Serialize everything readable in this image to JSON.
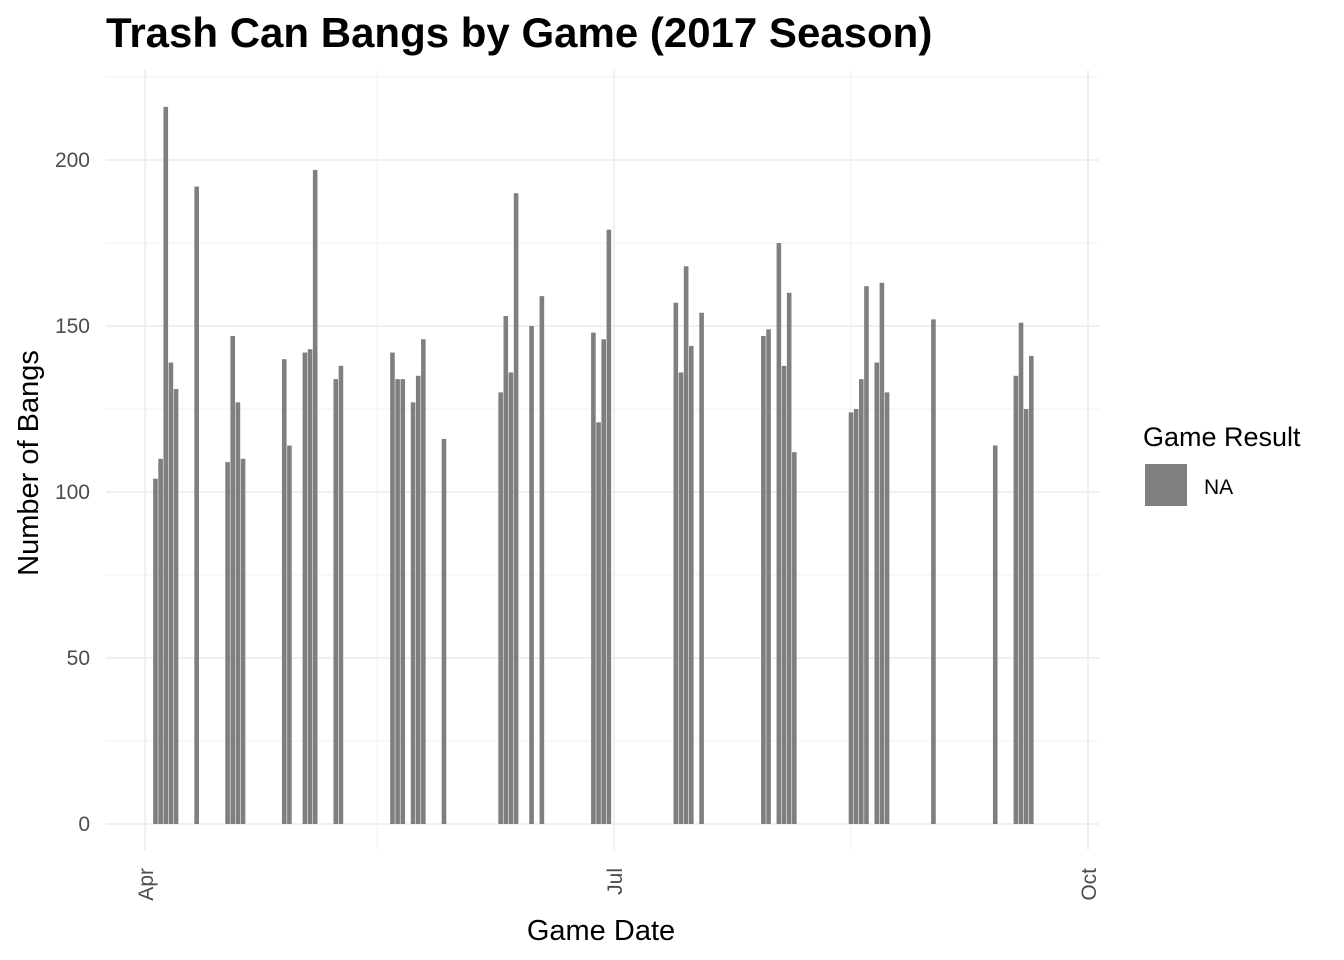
{
  "chart_data": {
    "type": "bar",
    "title": "Trash Can Bangs by Game (2017 Season)",
    "xlabel": "Game Date",
    "ylabel": "Number of Bangs",
    "x_tick_labels": [
      "Apr",
      "Jul",
      "Oct"
    ],
    "y_tick_labels": [
      "0",
      "50",
      "100",
      "150",
      "200"
    ],
    "ylim": [
      0,
      225
    ],
    "xlim": [
      "2017-03-31",
      "2017-10-01"
    ],
    "grid": true,
    "legend": {
      "title": "Game Result",
      "position": "right",
      "items": [
        {
          "label": "NA",
          "color": "#7f7f7f"
        }
      ]
    },
    "bar_color": "#7f7f7f",
    "series": [
      {
        "name": "NA",
        "x": [
          "2017-04-03",
          "2017-04-04",
          "2017-04-05",
          "2017-04-06",
          "2017-04-07",
          "2017-04-11",
          "2017-04-17",
          "2017-04-18",
          "2017-04-19",
          "2017-04-20",
          "2017-04-28",
          "2017-04-29",
          "2017-05-02",
          "2017-05-03",
          "2017-05-04",
          "2017-05-08",
          "2017-05-09",
          "2017-05-19",
          "2017-05-20",
          "2017-05-21",
          "2017-05-23",
          "2017-05-24",
          "2017-05-25",
          "2017-05-29",
          "2017-06-09",
          "2017-06-10",
          "2017-06-11",
          "2017-06-12",
          "2017-06-15",
          "2017-06-17",
          "2017-06-27",
          "2017-06-28",
          "2017-06-29",
          "2017-06-30",
          "2017-07-13",
          "2017-07-14",
          "2017-07-15",
          "2017-07-16",
          "2017-07-18",
          "2017-07-30",
          "2017-07-31",
          "2017-08-02",
          "2017-08-03",
          "2017-08-04",
          "2017-08-05",
          "2017-08-16",
          "2017-08-17",
          "2017-08-18",
          "2017-08-19",
          "2017-08-21",
          "2017-08-22",
          "2017-08-23",
          "2017-09-01",
          "2017-09-13",
          "2017-09-17",
          "2017-09-18",
          "2017-09-19",
          "2017-09-20",
          "2017-09-22"
        ],
        "values": [
          104,
          110,
          216,
          139,
          131,
          192,
          109,
          147,
          127,
          110,
          140,
          114,
          142,
          143,
          197,
          134,
          138,
          142,
          134,
          134,
          127,
          135,
          146,
          116,
          130,
          153,
          136,
          190,
          150,
          159,
          148,
          121,
          146,
          179,
          157,
          136,
          168,
          144,
          154,
          147,
          149,
          175,
          138,
          160,
          112,
          124,
          125,
          134,
          162,
          139,
          163,
          130,
          152,
          114,
          135,
          151,
          125,
          141,
          0
        ]
      }
    ]
  }
}
